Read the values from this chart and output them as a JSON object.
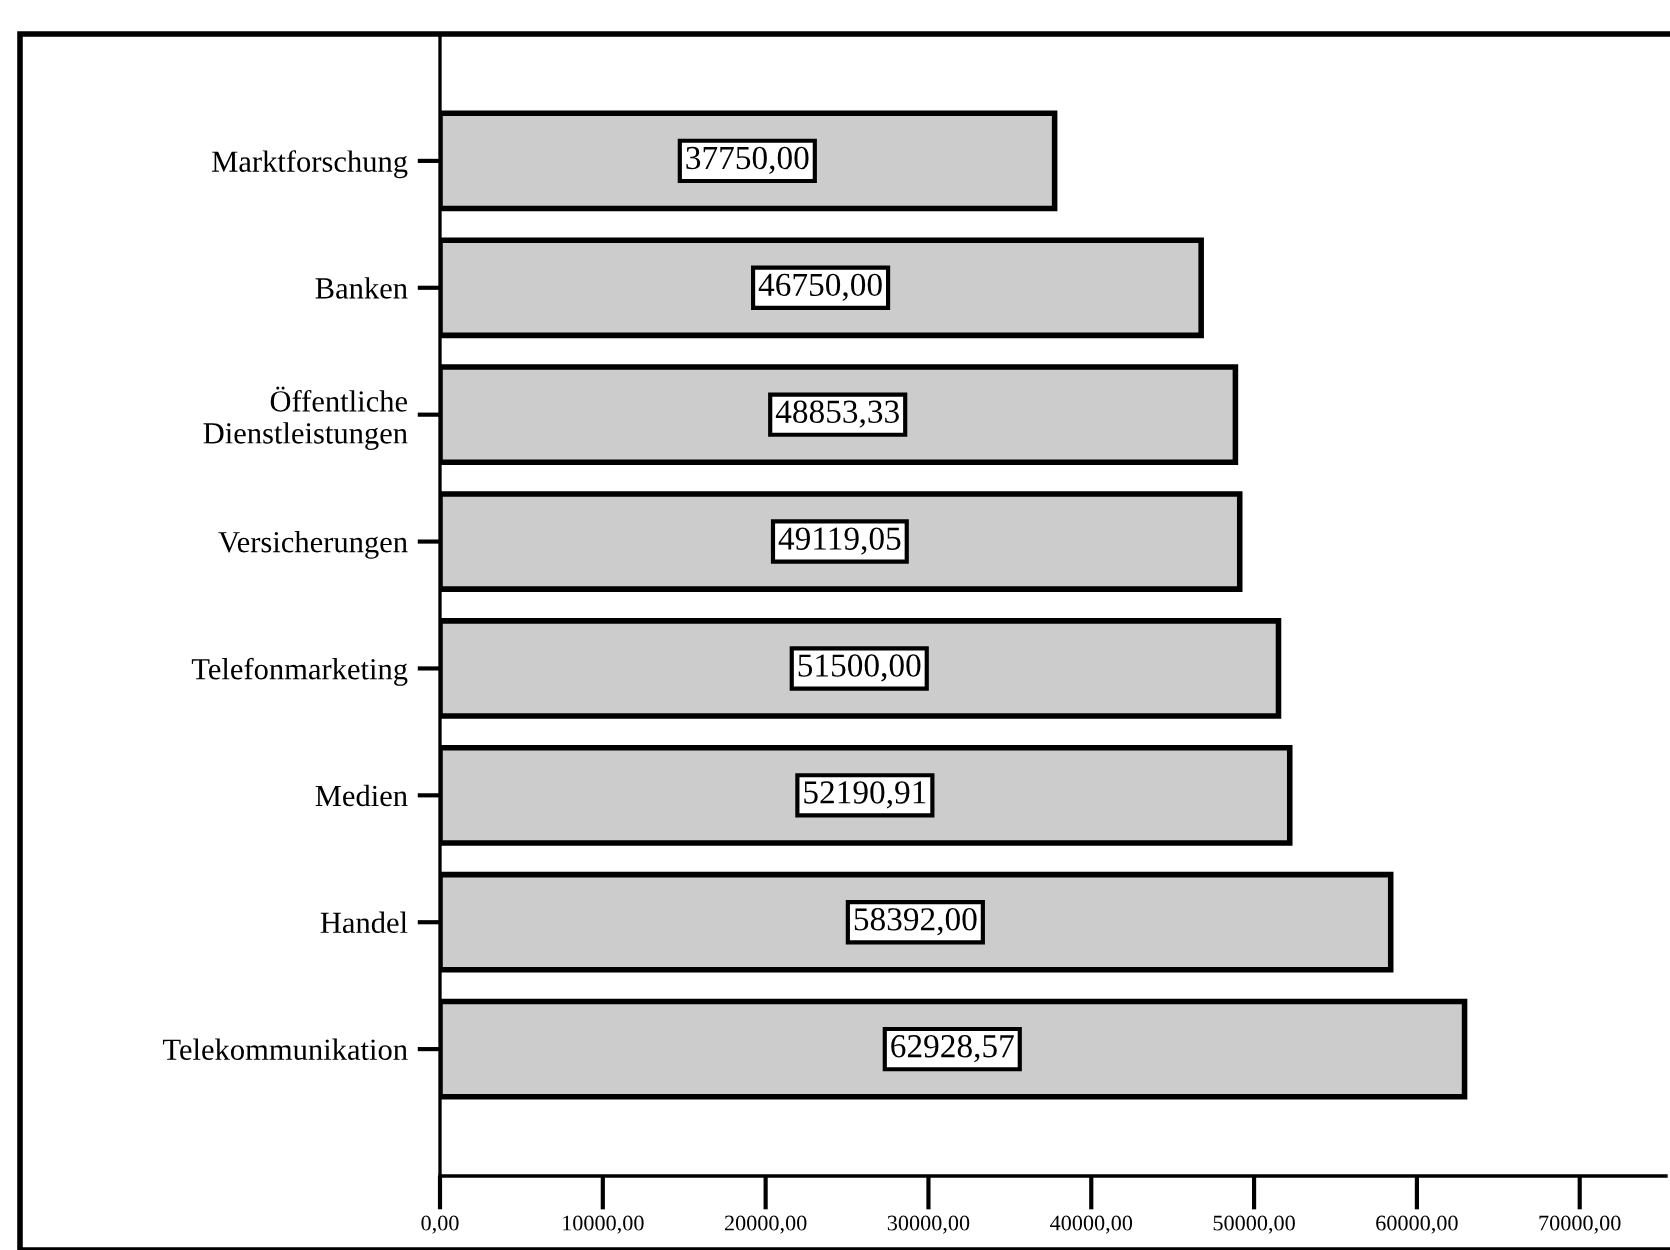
{
  "chart_data": {
    "type": "bar",
    "orientation": "horizontal",
    "categories": [
      "Marktforschung",
      "Banken",
      "Öffentliche\nDienstleistungen",
      "Versicherungen",
      "Telefonmarketing",
      "Medien",
      "Handel",
      "Telekommunikation"
    ],
    "values": [
      37750,
      46750,
      48853.33,
      49119.05,
      51500,
      52190.91,
      58392,
      62928.57
    ],
    "value_labels": [
      "37750,00",
      "46750,00",
      "48853,33",
      "49119,05",
      "51500,00",
      "52190,91",
      "58392,00",
      "62928,57"
    ],
    "color": "#cccccc",
    "xlim": [
      0,
      75300
    ],
    "xticks": [
      {
        "value": 0,
        "label": "0,00"
      },
      {
        "value": 10000,
        "label": "10000,00"
      },
      {
        "value": 20000,
        "label": "20000,00"
      },
      {
        "value": 30000,
        "label": "30000,00"
      },
      {
        "value": 40000,
        "label": "40000,00"
      },
      {
        "value": 50000,
        "label": "50000,00"
      },
      {
        "value": 60000,
        "label": "60000,00"
      },
      {
        "value": 70000,
        "label": "70000,00"
      }
    ],
    "grid": false,
    "legend": false
  }
}
